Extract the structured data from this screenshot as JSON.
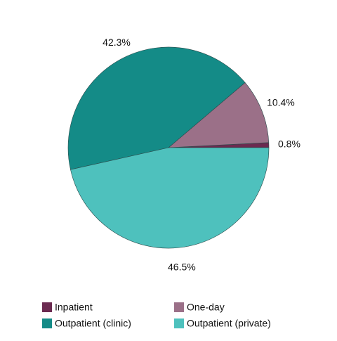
{
  "chart_data": {
    "type": "pie",
    "categories": [
      "Inpatient",
      "One-day",
      "Outpatient (clinic)",
      "Outpatient (private)"
    ],
    "values": [
      0.8,
      10.4,
      42.3,
      46.5
    ],
    "value_labels": [
      "0.8%",
      "10.4%",
      "42.3%",
      "46.5%"
    ],
    "colors": [
      "#6b2a50",
      "#9b7088",
      "#148b87",
      "#4ec1bd"
    ],
    "legend": "bottom"
  }
}
